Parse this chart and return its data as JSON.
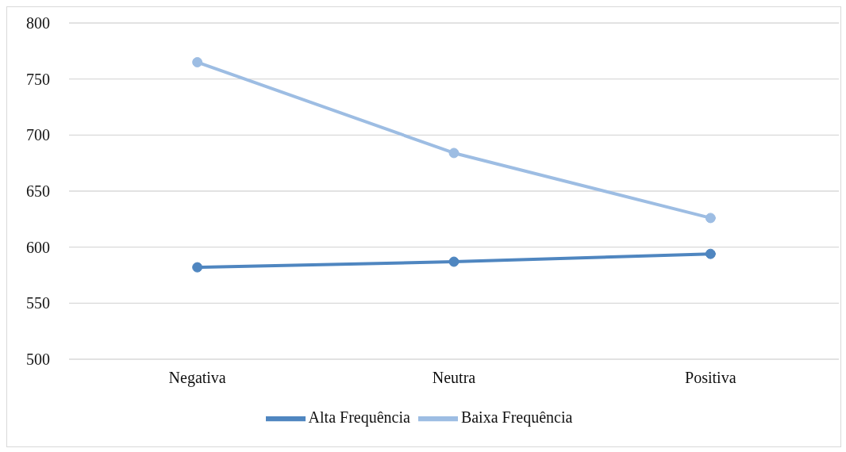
{
  "chart_data": {
    "type": "line",
    "categories": [
      "Negativa",
      "Neutra",
      "Positiva"
    ],
    "series": [
      {
        "name": "Alta Frequência",
        "color": "#4f86c0",
        "values": [
          582,
          587,
          594
        ]
      },
      {
        "name": "Baixa Frequência",
        "color": "#9dbde3",
        "values": [
          765,
          684,
          626
        ]
      }
    ],
    "ylim": [
      500,
      800
    ],
    "yticks": [
      500,
      550,
      600,
      650,
      700,
      750,
      800
    ],
    "grid": "y",
    "legend": "bottom",
    "marker": "circle",
    "line_style": "solid"
  }
}
